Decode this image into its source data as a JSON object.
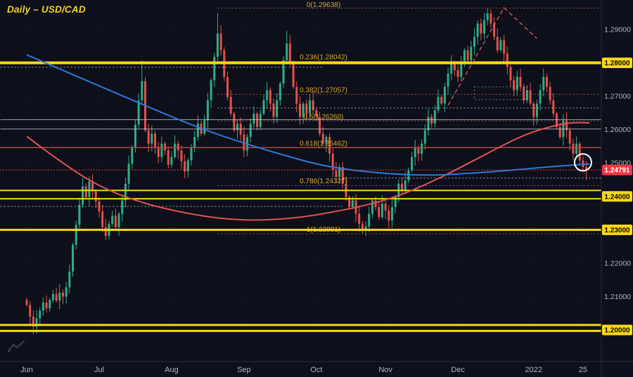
{
  "meta": {
    "title": "Daily – USD/CAD"
  },
  "colors": {
    "bg": "#0d0f1a",
    "axis_border": "#2a2e39",
    "grid": "#1c2130",
    "text": "#b2b5be",
    "up": "#2fae84",
    "down": "#e8504a",
    "yellow": "#f8d717",
    "white_line": "#cfd3dd",
    "fib_line": "#9a5b4f",
    "fib_label": "#d8a62d",
    "ma_blue": "#2979d9",
    "ma_red": "#e0534f",
    "price_line": "#f23645",
    "badge_text": "#0a0a0a",
    "circle": "#ffffff",
    "trend": "#c95a52",
    "red_level": "#b0493f",
    "logo": "#3c4150"
  },
  "axes": {
    "price_ticks": [
      {
        "label": "1.29000",
        "price": 1.29
      },
      {
        "label": "1.28000",
        "price": 1.28
      },
      {
        "label": "1.27000",
        "price": 1.27
      },
      {
        "label": "1.26000",
        "price": 1.26
      },
      {
        "label": "1.25000",
        "price": 1.25
      },
      {
        "label": "1.24000",
        "price": 1.24
      },
      {
        "label": "1.23000",
        "price": 1.23
      },
      {
        "label": "1.22000",
        "price": 1.22
      },
      {
        "label": "1.21000",
        "price": 1.21
      },
      {
        "label": "1.20000",
        "price": 1.2
      }
    ],
    "yellow_badges": [
      {
        "label": "1.28000",
        "price": 1.28
      },
      {
        "label": "1.24000",
        "price": 1.24
      },
      {
        "label": "1.23000",
        "price": 1.23
      },
      {
        "label": "1.20000",
        "price": 1.2
      }
    ],
    "current_price": {
      "label": "1.24791",
      "price": 1.24791
    },
    "time_ticks": [
      {
        "label": "Jun",
        "day": 0
      },
      {
        "label": "Jul",
        "day": 22
      },
      {
        "label": "Aug",
        "day": 44
      },
      {
        "label": "Sep",
        "day": 66
      },
      {
        "label": "Oct",
        "day": 88
      },
      {
        "label": "Nov",
        "day": 109
      },
      {
        "label": "Dec",
        "day": 131
      },
      {
        "label": "2022",
        "day": 154
      },
      {
        "label": "25",
        "day": 169
      }
    ]
  },
  "chart_data": {
    "type": "candlestick",
    "symbol": "USD/CAD",
    "timeframe": "Daily",
    "title": "Daily – USD/CAD",
    "price_range": [
      1.1905,
      1.2988
    ],
    "closes": [
      1.2075,
      1.204,
      1.201,
      1.2035,
      1.2058,
      1.2082,
      1.2065,
      1.209,
      1.2108,
      1.2088,
      1.2112,
      1.21,
      1.2128,
      1.2175,
      1.2255,
      1.2315,
      1.2375,
      1.243,
      1.2398,
      1.2445,
      1.2415,
      1.2385,
      1.2355,
      1.2308,
      1.2282,
      1.2318,
      1.2342,
      1.2308,
      1.2348,
      1.2388,
      1.2438,
      1.2498,
      1.2545,
      1.2615,
      1.2688,
      1.2745,
      1.2598,
      1.2558,
      1.2588,
      1.2548,
      1.2518,
      1.2558,
      1.2538,
      1.2495,
      1.2518,
      1.2558,
      1.2538,
      1.2505,
      1.2475,
      1.2508,
      1.2545,
      1.2578,
      1.2618,
      1.2588,
      1.2628,
      1.2688,
      1.2748,
      1.2818,
      1.2888,
      1.2838,
      1.2758,
      1.2698,
      1.2648,
      1.2598,
      1.2618,
      1.2585,
      1.2538,
      1.2578,
      1.2618,
      1.2648,
      1.2608,
      1.2648,
      1.2688,
      1.2718,
      1.2678,
      1.2638,
      1.2688,
      1.2738,
      1.2808,
      1.2858,
      1.2798,
      1.2728,
      1.2678,
      1.2638,
      1.2678,
      1.2648,
      1.2688,
      1.2658,
      1.2638,
      1.2588,
      1.2558,
      1.2578,
      1.2528,
      1.2478,
      1.2458,
      1.2488,
      1.2438,
      1.2398,
      1.2368,
      1.2388,
      1.2348,
      1.2318,
      1.23,
      1.231,
      1.2348,
      1.2388,
      1.2368,
      1.2338,
      1.2378,
      1.2358,
      1.2328,
      1.2368,
      1.2398,
      1.2438,
      1.2418,
      1.2448,
      1.2478,
      1.2518,
      1.2548,
      1.2528,
      1.2558,
      1.2598,
      1.2638,
      1.2618,
      1.2658,
      1.2698,
      1.2678,
      1.2728,
      1.2768,
      1.2798,
      1.2778,
      1.2758,
      1.2798,
      1.2838,
      1.2808,
      1.2848,
      1.2878,
      1.2918,
      1.2888,
      1.2928,
      1.2948,
      1.2918,
      1.2878,
      1.2838,
      1.2868,
      1.2828,
      1.2788,
      1.2748,
      1.2718,
      1.2758,
      1.2728,
      1.2688,
      1.2718,
      1.2678,
      1.2638,
      1.2678,
      1.2718,
      1.2758,
      1.2728,
      1.2688,
      1.2648,
      1.2608,
      1.2578,
      1.2628,
      1.2598,
      1.2558,
      1.2528,
      1.2558,
      1.2508,
      1.2488,
      1.24791
    ],
    "wick_overrides": {
      "35": {
        "high": 1.2807
      },
      "58": {
        "high": 1.2949
      },
      "79": {
        "high": 1.2896
      },
      "102": {
        "low": 1.2288
      },
      "140": {
        "high": 1.2964
      },
      "170": {
        "low": 1.245
      }
    },
    "fib_levels": [
      {
        "label": "0(1.29638)",
        "price": 1.29638
      },
      {
        "label": "0.236(1.28042)",
        "price": 1.28042
      },
      {
        "label": "0.382(1.27057)",
        "price": 1.27057
      },
      {
        "label": "0.5(1.26260)",
        "price": 1.2626
      },
      {
        "label": "0.618(1.25462)",
        "price": 1.25462
      },
      {
        "label": "0.786(1.24327)",
        "price": 1.24327
      },
      {
        "label": "1(1.22881)",
        "price": 1.22881
      }
    ],
    "yellow_levels": [
      {
        "price": 1.28,
        "weight": 4
      },
      {
        "price": 1.2418,
        "weight": 2
      },
      {
        "price": 1.2393,
        "weight": 2
      },
      {
        "price": 1.23,
        "weight": 3
      },
      {
        "price": 1.2015,
        "weight": 3
      },
      {
        "price": 1.1997,
        "weight": 3
      }
    ],
    "white_lines": [
      {
        "price": 1.2787,
        "style": "dotted",
        "from_day": -8,
        "to_day": 90
      },
      {
        "price": 1.2665,
        "style": "dotted",
        "from_day": 58,
        "to_day": 176
      },
      {
        "price": 1.263,
        "style": "solid",
        "from_day": -8,
        "to_day": 176
      },
      {
        "price": 1.2602,
        "style": "solid",
        "from_day": -8,
        "to_day": 176
      },
      {
        "price": 1.2455,
        "style": "dotted",
        "from_day": 96,
        "to_day": 176
      },
      {
        "price": 1.237,
        "style": "dotted",
        "from_day": -8,
        "to_day": 96
      }
    ],
    "red_level": 1.25462,
    "dotted_box": {
      "from_day": 136,
      "to_day": 152,
      "top": 1.2728,
      "bottom": 1.269
    },
    "ma_blue": [
      [
        0,
        1.2824
      ],
      [
        18,
        1.2748
      ],
      [
        36,
        1.2672
      ],
      [
        52,
        1.2606
      ],
      [
        67,
        1.2556
      ],
      [
        80,
        1.2518
      ],
      [
        90,
        1.2492
      ],
      [
        100,
        1.2477
      ],
      [
        112,
        1.2466
      ],
      [
        124,
        1.2463
      ],
      [
        136,
        1.247
      ],
      [
        148,
        1.2479
      ],
      [
        160,
        1.249
      ],
      [
        171,
        1.2497
      ]
    ],
    "ma_red": [
      [
        0,
        1.258
      ],
      [
        12,
        1.249
      ],
      [
        24,
        1.242
      ],
      [
        36,
        1.2378
      ],
      [
        48,
        1.235
      ],
      [
        60,
        1.2332
      ],
      [
        72,
        1.2328
      ],
      [
        84,
        1.2338
      ],
      [
        94,
        1.2355
      ],
      [
        104,
        1.2375
      ],
      [
        114,
        1.2405
      ],
      [
        124,
        1.2448
      ],
      [
        134,
        1.2498
      ],
      [
        144,
        1.255
      ],
      [
        152,
        1.2588
      ],
      [
        160,
        1.2612
      ],
      [
        166,
        1.2622
      ],
      [
        171,
        1.262
      ]
    ],
    "trendline": [
      [
        128,
        1.2673
      ],
      [
        145,
        1.2965
      ],
      [
        155,
        1.2873
      ]
    ],
    "highlight_circle": {
      "day": 169,
      "price": 1.2502,
      "radius": 12
    },
    "current_price": 1.24791
  }
}
